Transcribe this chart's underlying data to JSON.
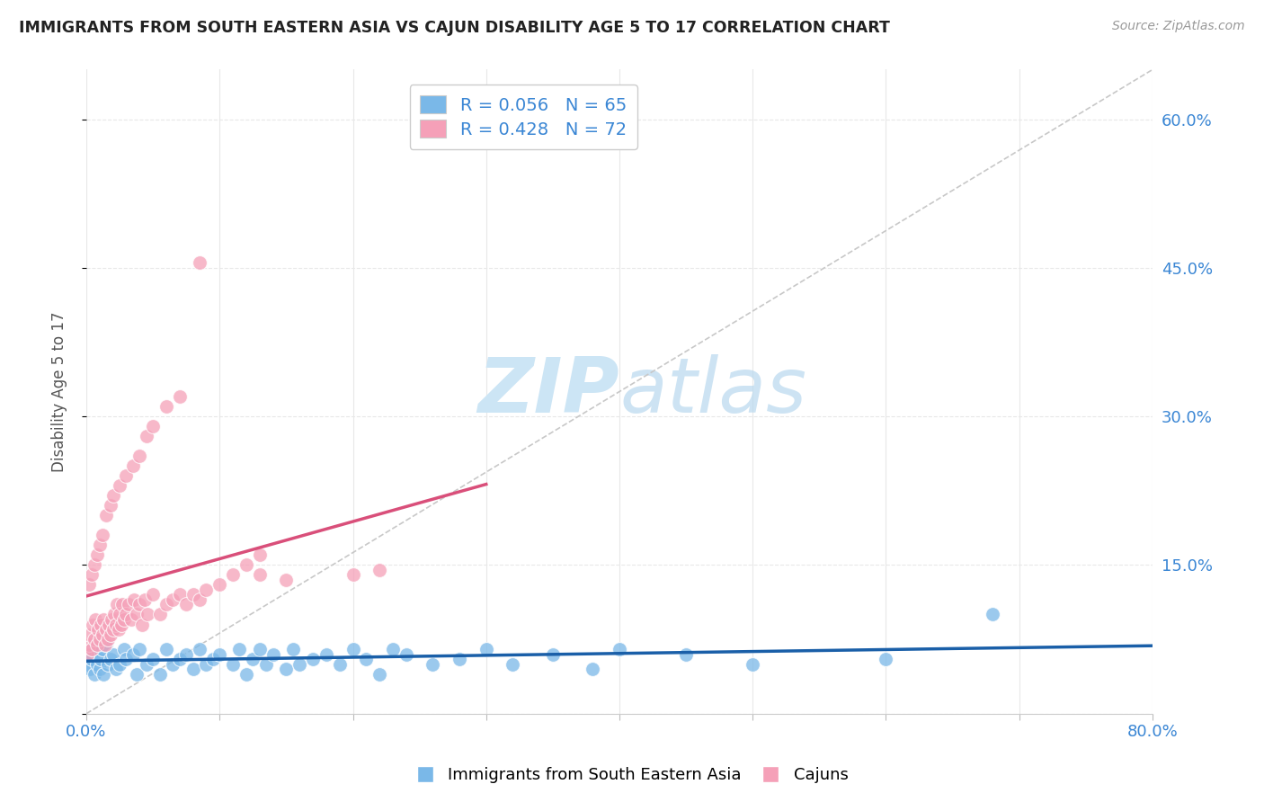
{
  "title": "IMMIGRANTS FROM SOUTH EASTERN ASIA VS CAJUN DISABILITY AGE 5 TO 17 CORRELATION CHART",
  "source": "Source: ZipAtlas.com",
  "ylabel": "Disability Age 5 to 17",
  "xlim": [
    0.0,
    0.8
  ],
  "ylim": [
    0.0,
    0.65
  ],
  "xtick_vals": [
    0.0,
    0.1,
    0.2,
    0.3,
    0.4,
    0.5,
    0.6,
    0.7,
    0.8
  ],
  "xtick_labels": [
    "0.0%",
    "",
    "",
    "",
    "",
    "",
    "",
    "",
    "80.0%"
  ],
  "ytick_vals_right": [
    0.15,
    0.3,
    0.45,
    0.6
  ],
  "ytick_labels_right": [
    "15.0%",
    "30.0%",
    "45.0%",
    "60.0%"
  ],
  "ytick_vals_left": [
    0.0,
    0.15,
    0.3,
    0.45,
    0.6
  ],
  "blue_R": 0.056,
  "blue_N": 65,
  "pink_R": 0.428,
  "pink_N": 72,
  "blue_color": "#7ab8e8",
  "pink_color": "#f5a0b8",
  "blue_line_color": "#1a5fa8",
  "pink_line_color": "#d94f7a",
  "diagonal_color": "#c8c8c8",
  "background_color": "#ffffff",
  "watermark_color": "#cce5f5",
  "legend_label_blue": "Immigrants from South Eastern Asia",
  "legend_label_pink": "Cajuns",
  "title_color": "#222222",
  "axis_label_color": "#555555",
  "tick_color_right": "#3a86d4",
  "tick_color_bottom": "#3a86d4",
  "grid_color": "#e8e8e8",
  "blue_x": [
    0.001,
    0.002,
    0.003,
    0.004,
    0.005,
    0.006,
    0.007,
    0.008,
    0.009,
    0.01,
    0.011,
    0.012,
    0.013,
    0.015,
    0.016,
    0.018,
    0.02,
    0.022,
    0.025,
    0.028,
    0.03,
    0.035,
    0.038,
    0.04,
    0.045,
    0.05,
    0.055,
    0.06,
    0.065,
    0.07,
    0.075,
    0.08,
    0.085,
    0.09,
    0.095,
    0.1,
    0.11,
    0.115,
    0.12,
    0.125,
    0.13,
    0.135,
    0.14,
    0.15,
    0.155,
    0.16,
    0.17,
    0.18,
    0.19,
    0.2,
    0.21,
    0.22,
    0.23,
    0.24,
    0.26,
    0.28,
    0.3,
    0.32,
    0.35,
    0.38,
    0.4,
    0.45,
    0.5,
    0.6,
    0.68
  ],
  "blue_y": [
    0.05,
    0.06,
    0.045,
    0.055,
    0.065,
    0.04,
    0.07,
    0.05,
    0.06,
    0.045,
    0.055,
    0.065,
    0.04,
    0.07,
    0.05,
    0.055,
    0.06,
    0.045,
    0.05,
    0.065,
    0.055,
    0.06,
    0.04,
    0.065,
    0.05,
    0.055,
    0.04,
    0.065,
    0.05,
    0.055,
    0.06,
    0.045,
    0.065,
    0.05,
    0.055,
    0.06,
    0.05,
    0.065,
    0.04,
    0.055,
    0.065,
    0.05,
    0.06,
    0.045,
    0.065,
    0.05,
    0.055,
    0.06,
    0.05,
    0.065,
    0.055,
    0.04,
    0.065,
    0.06,
    0.05,
    0.055,
    0.065,
    0.05,
    0.06,
    0.045,
    0.065,
    0.06,
    0.05,
    0.055,
    0.1
  ],
  "pink_x": [
    0.001,
    0.002,
    0.003,
    0.004,
    0.005,
    0.006,
    0.007,
    0.008,
    0.009,
    0.01,
    0.011,
    0.012,
    0.013,
    0.014,
    0.015,
    0.016,
    0.017,
    0.018,
    0.019,
    0.02,
    0.021,
    0.022,
    0.023,
    0.024,
    0.025,
    0.026,
    0.027,
    0.028,
    0.03,
    0.032,
    0.034,
    0.036,
    0.038,
    0.04,
    0.042,
    0.044,
    0.046,
    0.05,
    0.055,
    0.06,
    0.065,
    0.07,
    0.075,
    0.08,
    0.085,
    0.09,
    0.1,
    0.11,
    0.12,
    0.13,
    0.002,
    0.004,
    0.006,
    0.008,
    0.01,
    0.012,
    0.015,
    0.018,
    0.02,
    0.025,
    0.03,
    0.035,
    0.04,
    0.045,
    0.05,
    0.06,
    0.07,
    0.15,
    0.2,
    0.22,
    0.085,
    0.13
  ],
  "pink_y": [
    0.06,
    0.07,
    0.08,
    0.065,
    0.09,
    0.075,
    0.095,
    0.07,
    0.085,
    0.075,
    0.09,
    0.08,
    0.095,
    0.07,
    0.085,
    0.075,
    0.09,
    0.08,
    0.095,
    0.085,
    0.1,
    0.09,
    0.11,
    0.085,
    0.1,
    0.09,
    0.11,
    0.095,
    0.1,
    0.11,
    0.095,
    0.115,
    0.1,
    0.11,
    0.09,
    0.115,
    0.1,
    0.12,
    0.1,
    0.11,
    0.115,
    0.12,
    0.11,
    0.12,
    0.115,
    0.125,
    0.13,
    0.14,
    0.15,
    0.16,
    0.13,
    0.14,
    0.15,
    0.16,
    0.17,
    0.18,
    0.2,
    0.21,
    0.22,
    0.23,
    0.24,
    0.25,
    0.26,
    0.28,
    0.29,
    0.31,
    0.32,
    0.135,
    0.14,
    0.145,
    0.455,
    0.14
  ]
}
